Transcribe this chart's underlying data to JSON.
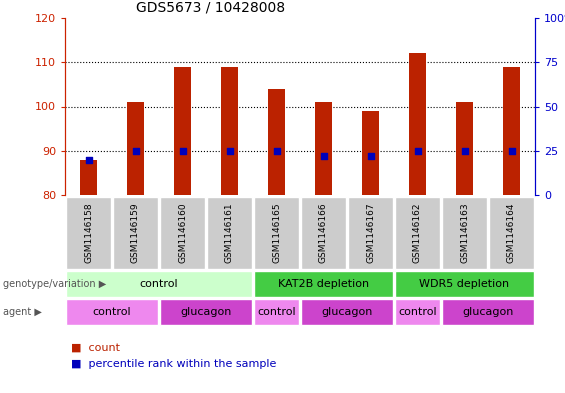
{
  "title": "GDS5673 / 10428008",
  "samples": [
    "GSM1146158",
    "GSM1146159",
    "GSM1146160",
    "GSM1146161",
    "GSM1146165",
    "GSM1146166",
    "GSM1146167",
    "GSM1146162",
    "GSM1146163",
    "GSM1146164"
  ],
  "counts": [
    88,
    101,
    109,
    109,
    104,
    101,
    99,
    112,
    101,
    109
  ],
  "percentile_ranks": [
    20,
    25,
    25,
    25,
    25,
    22,
    22,
    25,
    25,
    25
  ],
  "ylim_left": [
    80,
    120
  ],
  "ylim_right": [
    0,
    100
  ],
  "yticks_left": [
    80,
    90,
    100,
    110,
    120
  ],
  "yticks_right": [
    0,
    25,
    50,
    75,
    100
  ],
  "bar_color": "#bb2200",
  "dot_color": "#0000bb",
  "left_axis_color": "#cc2200",
  "right_axis_color": "#0000cc",
  "genotype_groups": [
    {
      "label": "control",
      "start": 0,
      "end": 4,
      "color": "#ccffcc"
    },
    {
      "label": "KAT2B depletion",
      "start": 4,
      "end": 7,
      "color": "#44cc44"
    },
    {
      "label": "WDR5 depletion",
      "start": 7,
      "end": 10,
      "color": "#44cc44"
    }
  ],
  "agent_groups": [
    {
      "label": "control",
      "start": 0,
      "end": 2,
      "color": "#ee88ee"
    },
    {
      "label": "glucagon",
      "start": 2,
      "end": 4,
      "color": "#cc44cc"
    },
    {
      "label": "control",
      "start": 4,
      "end": 5,
      "color": "#ee88ee"
    },
    {
      "label": "glucagon",
      "start": 5,
      "end": 7,
      "color": "#cc44cc"
    },
    {
      "label": "control",
      "start": 7,
      "end": 8,
      "color": "#ee88ee"
    },
    {
      "label": "glucagon",
      "start": 8,
      "end": 10,
      "color": "#cc44cc"
    }
  ],
  "legend_items": [
    {
      "label": "count",
      "color": "#bb2200"
    },
    {
      "label": "percentile rank within the sample",
      "color": "#0000bb"
    }
  ]
}
